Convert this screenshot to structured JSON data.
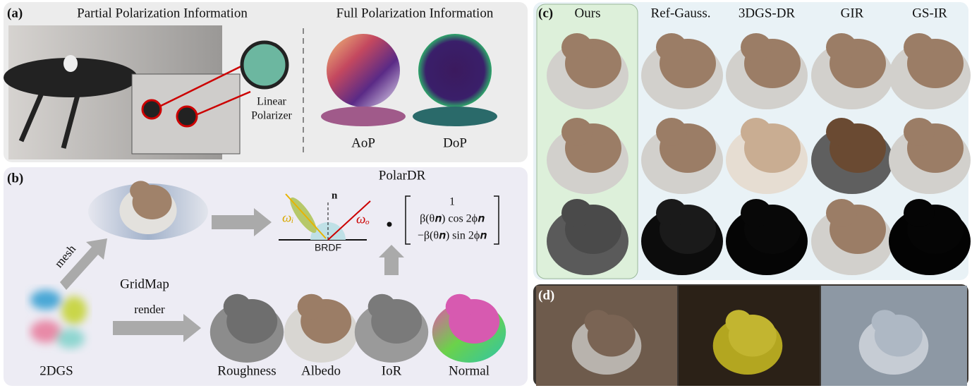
{
  "panel_a": {
    "label": "(a)",
    "left_title": "Partial Polarization Information",
    "right_title": "Full Polarization Information",
    "polarizer": [
      "Linear",
      "Polarizer"
    ],
    "maps": [
      "AoP",
      "DoP"
    ]
  },
  "panel_b": {
    "label": "(b)",
    "title": "PolarDR",
    "normal": "n",
    "omega_i": "ωᵢ",
    "omega_o": "ωₒ",
    "brdf": "BRDF",
    "matrix": [
      "1",
      "β(θ𝒏) cos 2ϕ𝒏",
      "−β(θ𝒏) sin 2ϕ𝒏"
    ],
    "mesh": "mesh",
    "gridmap": "GridMap",
    "render": "render",
    "source": "2DGS",
    "attributes": [
      "Roughness",
      "Albedo",
      "IoR",
      "Normal"
    ]
  },
  "panel_c": {
    "label": "(c)",
    "methods": [
      "Ours",
      "Ref-Gauss.",
      "3DGS-DR",
      "GIR",
      "GS-IR"
    ]
  },
  "panel_d": {
    "label": "(d)"
  }
}
